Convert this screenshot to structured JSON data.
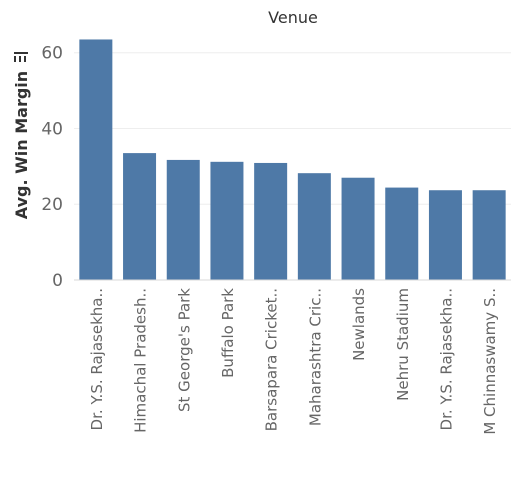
{
  "chart_data": {
    "type": "bar",
    "title": "Venue",
    "ylabel": "Avg. Win Margin",
    "ylim": [
      0,
      66
    ],
    "yticks": [
      0,
      20,
      40,
      60
    ],
    "grid": true,
    "bar_color": "#4e79a7",
    "categories": [
      "Dr. Y.S. Rajasekha..",
      "Himachal Pradesh..",
      "St George's Park",
      "Buffalo Park",
      "Barsapara Cricket..",
      "Maharashtra Cric..",
      "Newlands",
      "Nehru Stadium",
      "Dr. Y.S. Rajasekha..",
      "M Chinnaswamy S.."
    ],
    "values": [
      63.5,
      33.5,
      31.7,
      31.2,
      30.9,
      28.2,
      27.0,
      24.4,
      23.7,
      23.7
    ]
  }
}
